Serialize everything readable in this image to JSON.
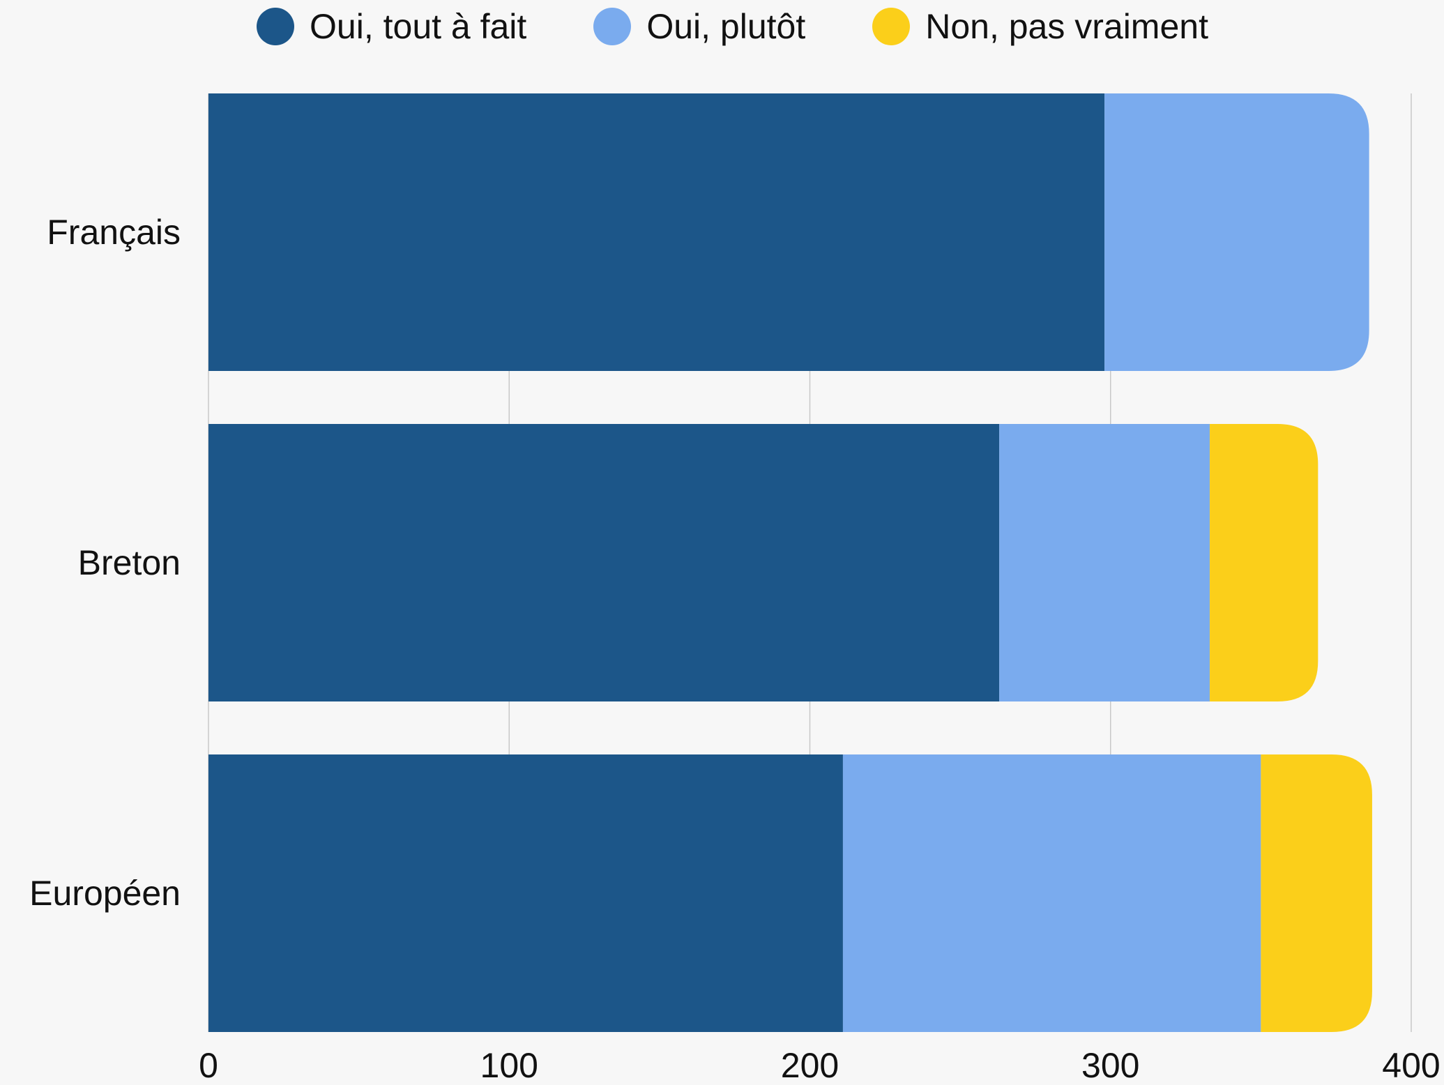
{
  "chart_data": {
    "type": "bar",
    "orientation": "horizontal",
    "stacked": true,
    "categories": [
      "Français",
      "Breton",
      "Européen"
    ],
    "series": [
      {
        "name": "Oui, tout à fait",
        "color": "#1c5689",
        "values": [
          298,
          263,
          211
        ]
      },
      {
        "name": "Oui, plutôt",
        "color": "#7aabee",
        "values": [
          88,
          70,
          139
        ]
      },
      {
        "name": "Non, pas vraiment",
        "color": "#fbcf1a",
        "values": [
          0,
          36,
          37
        ]
      }
    ],
    "xlim": [
      0,
      400
    ],
    "xticks": [
      0,
      100,
      200,
      300,
      400
    ],
    "grid": true,
    "legend_position": "top",
    "title": "",
    "xlabel": "",
    "ylabel": ""
  }
}
